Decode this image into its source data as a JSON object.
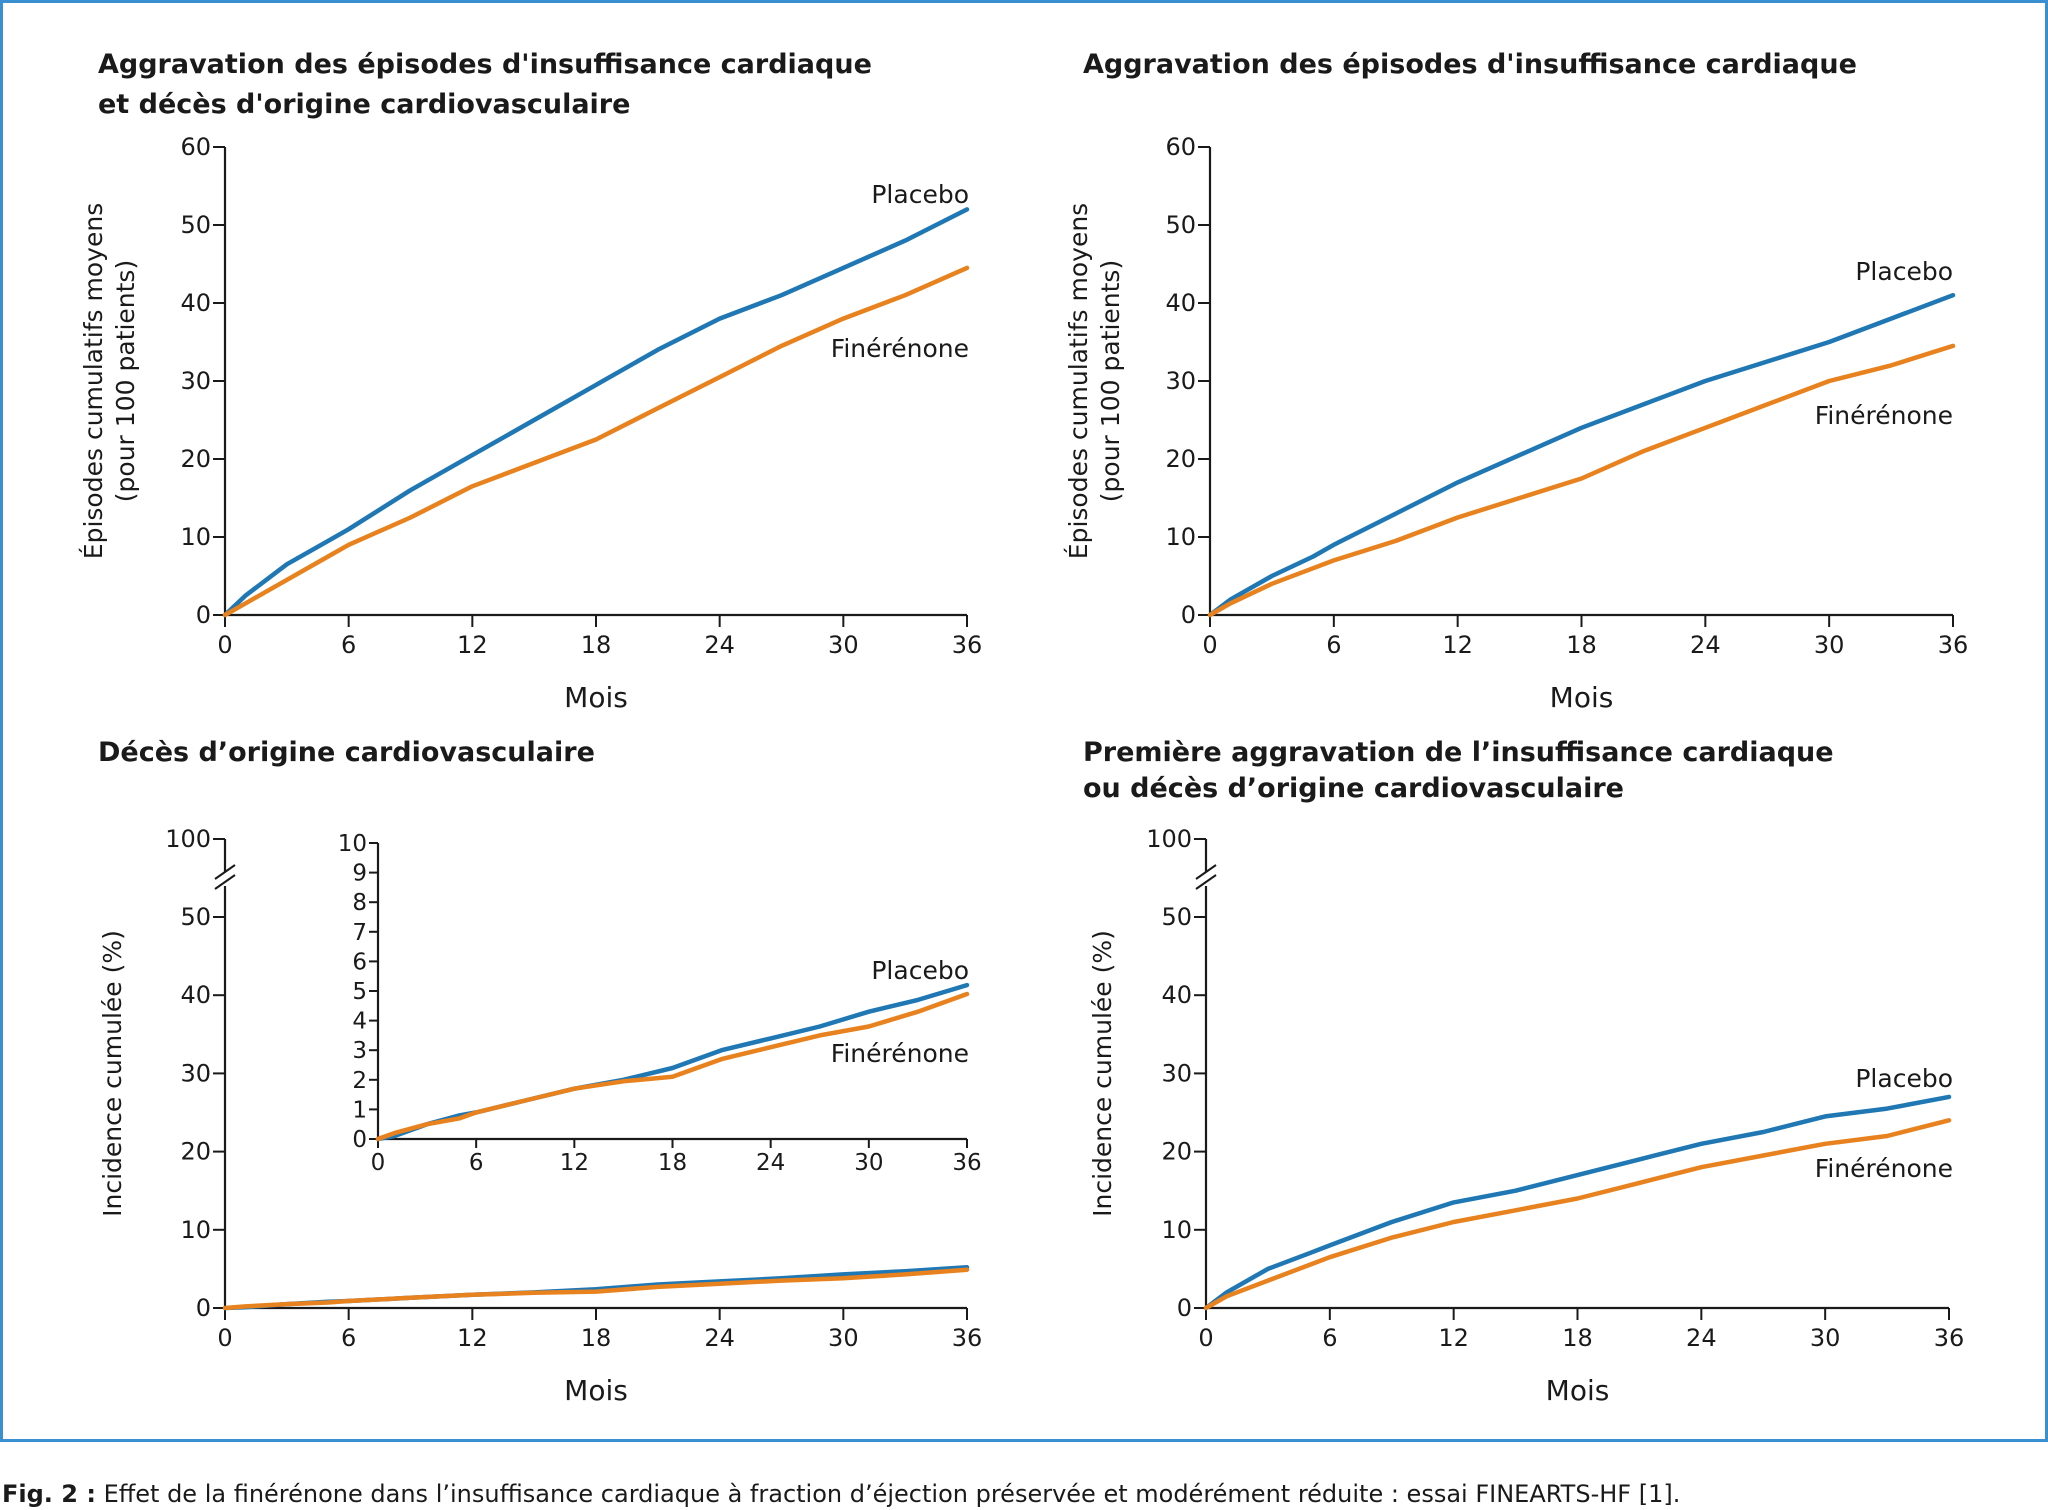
{
  "colors": {
    "placebo": "#1f77b4",
    "finerenone": "#e8821e",
    "frame": "#3a8fd0",
    "text": "#1a1a1a"
  },
  "caption": {
    "label": "Fig. 2 :",
    "text": " Effet de la finérénone dans l’insuffisance cardiaque à fraction d’éjection préservée et modérément réduite : essai FINEARTS-HF [1]."
  },
  "chart_data": [
    {
      "type": "line",
      "title": [
        "Aggravation des épisodes d'insuffisance cardiaque",
        "et décès d'origine cardiovasculaire"
      ],
      "xlabel": "Mois",
      "ylabel": [
        "Épisodes cumulatifs moyens",
        "(pour 100 patients)"
      ],
      "xticks": [
        0,
        6,
        12,
        18,
        24,
        30,
        36
      ],
      "yticks": [
        0,
        10,
        20,
        30,
        40,
        50,
        60
      ],
      "xlim": [
        0,
        36
      ],
      "ylim": [
        0,
        60
      ],
      "series": [
        {
          "name": "Placebo",
          "x": [
            0,
            1,
            3,
            5,
            6,
            9,
            12,
            15,
            18,
            21,
            24,
            27,
            30,
            33,
            36
          ],
          "y": [
            0,
            2.5,
            6.5,
            9.5,
            11,
            16,
            20.5,
            25,
            29.5,
            34,
            38,
            41,
            44.5,
            48,
            52
          ]
        },
        {
          "name": "Finérénone",
          "x": [
            0,
            1,
            3,
            5,
            6,
            9,
            12,
            15,
            18,
            21,
            24,
            27,
            30,
            33,
            36
          ],
          "y": [
            0,
            1.5,
            4.5,
            7.5,
            9,
            12.5,
            16.5,
            19.5,
            22.5,
            26.5,
            30.5,
            34.5,
            38,
            41,
            44.5
          ]
        }
      ]
    },
    {
      "type": "line",
      "title": [
        "Aggravation des épisodes d'insuffisance cardiaque"
      ],
      "xlabel": "Mois",
      "ylabel": [
        "Épisodes cumulatifs moyens",
        "(pour 100 patients)"
      ],
      "xticks": [
        0,
        6,
        12,
        18,
        24,
        30,
        36
      ],
      "yticks": [
        0,
        10,
        20,
        30,
        40,
        50,
        60
      ],
      "xlim": [
        0,
        36
      ],
      "ylim": [
        0,
        60
      ],
      "series": [
        {
          "name": "Placebo",
          "x": [
            0,
            1,
            3,
            5,
            6,
            9,
            12,
            15,
            18,
            21,
            24,
            27,
            30,
            33,
            36
          ],
          "y": [
            0,
            2,
            5,
            7.5,
            9,
            13,
            17,
            20.5,
            24,
            27,
            30,
            32.5,
            35,
            38,
            41
          ]
        },
        {
          "name": "Finérénone",
          "x": [
            0,
            1,
            3,
            5,
            6,
            9,
            12,
            15,
            18,
            21,
            24,
            27,
            30,
            33,
            36
          ],
          "y": [
            0,
            1.5,
            4,
            6,
            7,
            9.5,
            12.5,
            15,
            17.5,
            21,
            24,
            27,
            30,
            32,
            34.5
          ]
        }
      ]
    },
    {
      "type": "line",
      "title": [
        "Décès d’origine cardiovasculaire"
      ],
      "xlabel": "Mois",
      "ylabel": [
        "Incidence cumulée (%)"
      ],
      "xticks": [
        0,
        6,
        12,
        18,
        24,
        30,
        36
      ],
      "yticks": [
        0,
        10,
        20,
        30,
        40,
        50
      ],
      "ytick_break": 100,
      "xlim": [
        0,
        36
      ],
      "ylim": [
        0,
        50
      ],
      "series": [
        {
          "name": "Placebo",
          "x": [
            0,
            1,
            3,
            5,
            6,
            9,
            12,
            15,
            18,
            21,
            24,
            27,
            30,
            33,
            36
          ],
          "y": [
            0,
            0.1,
            0.5,
            0.8,
            0.9,
            1.3,
            1.7,
            2.0,
            2.4,
            3.0,
            3.4,
            3.8,
            4.3,
            4.7,
            5.2
          ]
        },
        {
          "name": "Finérénone",
          "x": [
            0,
            1,
            3,
            5,
            6,
            9,
            12,
            15,
            18,
            21,
            24,
            27,
            30,
            33,
            36
          ],
          "y": [
            0,
            0.2,
            0.5,
            0.7,
            0.9,
            1.3,
            1.7,
            1.95,
            2.1,
            2.7,
            3.1,
            3.5,
            3.8,
            4.3,
            4.9
          ]
        }
      ],
      "inset": {
        "xticks": [
          0,
          6,
          12,
          18,
          24,
          30,
          36
        ],
        "yticks": [
          0,
          1,
          2,
          3,
          4,
          5,
          6,
          7,
          8,
          9,
          10
        ],
        "xlim": [
          0,
          36
        ],
        "ylim": [
          0,
          10
        ]
      }
    },
    {
      "type": "line",
      "title": [
        "Première aggravation de l’insuffisance cardiaque",
        "ou décès d’origine cardiovasculaire"
      ],
      "xlabel": "Mois",
      "ylabel": [
        "Incidence cumulée (%)"
      ],
      "xticks": [
        0,
        6,
        12,
        18,
        24,
        30,
        36
      ],
      "yticks": [
        0,
        10,
        20,
        30,
        40,
        50
      ],
      "ytick_break": 100,
      "xlim": [
        0,
        36
      ],
      "ylim": [
        0,
        50
      ],
      "series": [
        {
          "name": "Placebo",
          "x": [
            0,
            1,
            3,
            5,
            6,
            9,
            12,
            15,
            18,
            21,
            24,
            27,
            30,
            33,
            36
          ],
          "y": [
            0,
            2,
            5,
            7,
            8,
            11,
            13.5,
            15,
            17,
            19,
            21,
            22.5,
            24.5,
            25.5,
            27
          ]
        },
        {
          "name": "Finérénone",
          "x": [
            0,
            1,
            3,
            5,
            6,
            9,
            12,
            15,
            18,
            21,
            24,
            27,
            30,
            33,
            36
          ],
          "y": [
            0,
            1.5,
            3.5,
            5.5,
            6.5,
            9,
            11,
            12.5,
            14,
            16,
            18,
            19.5,
            21,
            22,
            24
          ]
        }
      ]
    }
  ]
}
